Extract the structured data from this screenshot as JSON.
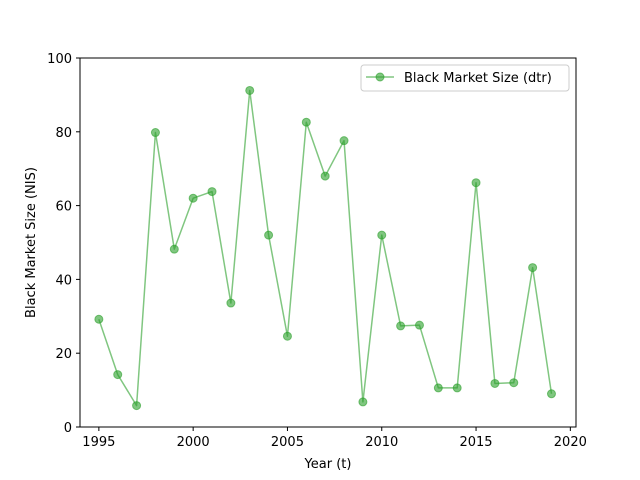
{
  "chart_data": {
    "type": "line",
    "title": "",
    "xlabel": "Year (t)",
    "ylabel": "Black Market Size (NIS)",
    "xlim": [
      1994,
      2020.3
    ],
    "ylim": [
      0,
      100
    ],
    "x_ticks": [
      1995,
      2000,
      2005,
      2010,
      2015,
      2020
    ],
    "y_ticks": [
      0,
      20,
      40,
      60,
      80,
      100
    ],
    "grid": false,
    "legend_position": "top-right",
    "series": [
      {
        "name": "Black Market Size (dtr)",
        "color": "#2ca02c",
        "marker": "circle",
        "x": [
          1995,
          1996,
          1997,
          1998,
          1999,
          2000,
          2001,
          2002,
          2003,
          2004,
          2005,
          2006,
          2007,
          2008,
          2009,
          2010,
          2011,
          2012,
          2013,
          2014,
          2015,
          2016,
          2017,
          2018,
          2019
        ],
        "values": [
          29.2,
          14.2,
          5.8,
          79.8,
          48.2,
          62,
          63.8,
          33.6,
          91.2,
          52,
          24.6,
          82.6,
          68,
          77.6,
          6.8,
          52,
          27.4,
          27.6,
          10.6,
          10.6,
          66.2,
          11.8,
          12,
          43.2,
          9
        ]
      }
    ]
  }
}
